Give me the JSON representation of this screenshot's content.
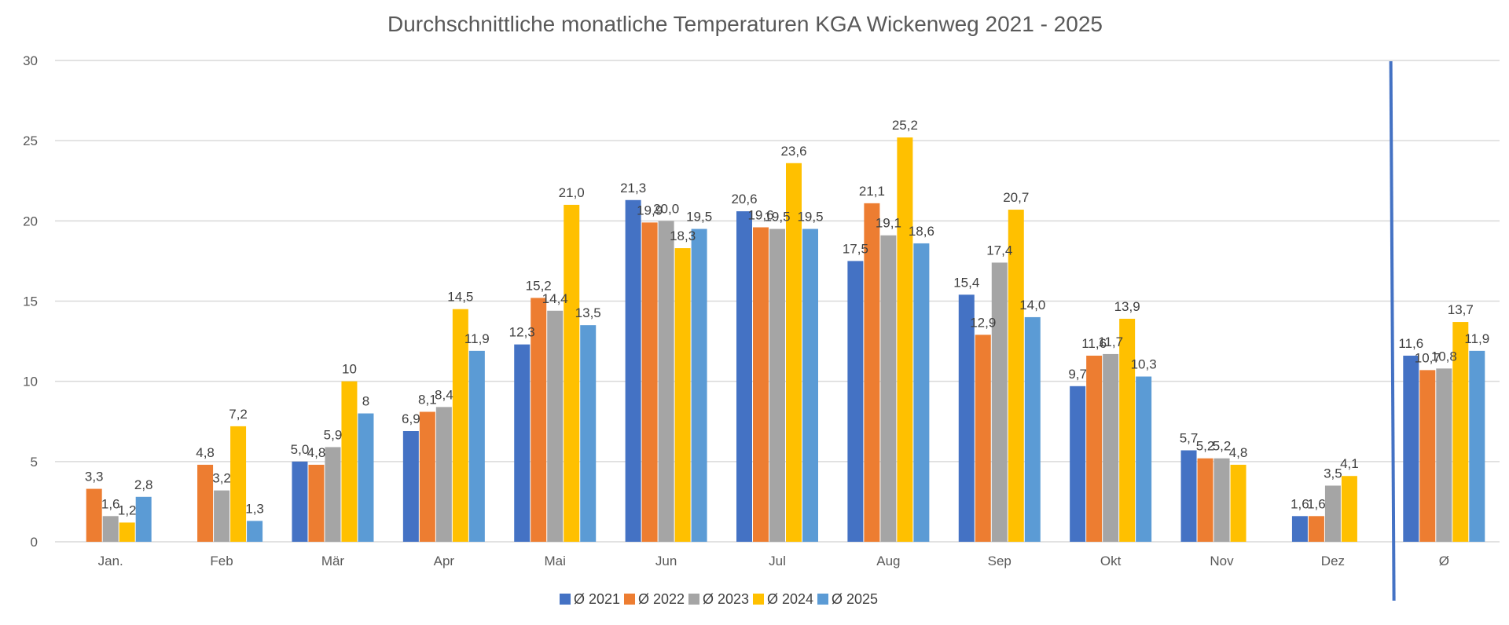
{
  "chart_data": {
    "type": "bar",
    "title": "Durchschnittliche monatliche Temperaturen KGA Wickenweg 2021 - 2025",
    "xlabel": "",
    "ylabel": "",
    "categories": [
      "Jan.",
      "Feb",
      "Mär",
      "Apr",
      "Mai",
      "Jun",
      "Jul",
      "Aug",
      "Sep",
      "Okt",
      "Nov",
      "Dez",
      "Ø"
    ],
    "yticks": [
      "0",
      "5",
      "10",
      "15",
      "20",
      "25",
      "30"
    ],
    "ylim": [
      0,
      30
    ],
    "grid": true,
    "legend_position": "bottom",
    "series": [
      {
        "name": "Ø 2021",
        "color": "#4472C4",
        "values": [
          null,
          null,
          5.0,
          6.9,
          12.3,
          21.3,
          20.6,
          17.5,
          15.4,
          9.7,
          5.7,
          1.6,
          11.6
        ],
        "labels": [
          "",
          "",
          "5,0",
          "6,9",
          "12,3",
          "21,3",
          "20,6",
          "17,5",
          "15,4",
          "9,7",
          "5,7",
          "1,6",
          "11,6"
        ]
      },
      {
        "name": "Ø 2022",
        "color": "#ED7D31",
        "values": [
          3.3,
          4.8,
          4.8,
          8.1,
          15.2,
          19.9,
          19.6,
          21.1,
          12.9,
          11.6,
          5.2,
          1.6,
          10.7
        ],
        "labels": [
          "3,3",
          "4,8",
          "4,8",
          "8,1",
          "15,2",
          "19,9",
          "19,6",
          "21,1",
          "12,9",
          "11,6",
          "5,2",
          "1,6",
          "10,7"
        ]
      },
      {
        "name": "Ø 2023",
        "color": "#A5A5A5",
        "values": [
          1.6,
          3.2,
          5.9,
          8.4,
          14.4,
          20.0,
          19.5,
          19.1,
          17.4,
          11.7,
          5.2,
          3.5,
          10.8
        ],
        "labels": [
          "1,6",
          "3,2",
          "5,9",
          "8,4",
          "14,4",
          "20,0",
          "19,5",
          "19,1",
          "17,4",
          "11,7",
          "5,2",
          "3,5",
          "10,8"
        ]
      },
      {
        "name": "Ø 2024",
        "color": "#FFC000",
        "values": [
          1.2,
          7.2,
          10,
          14.5,
          21.0,
          18.3,
          23.6,
          25.2,
          20.7,
          13.9,
          4.8,
          4.1,
          13.7
        ],
        "labels": [
          "1,2",
          "7,2",
          "10",
          "14,5",
          "21,0",
          "18,3",
          "23,6",
          "25,2",
          "20,7",
          "13,9",
          "4,8",
          "4,1",
          "13,7"
        ]
      },
      {
        "name": "Ø 2025",
        "color": "#5B9BD5",
        "values": [
          2.8,
          1.3,
          8,
          11.9,
          13.5,
          19.5,
          19.5,
          18.6,
          14.0,
          10.3,
          null,
          null,
          11.9
        ],
        "labels": [
          "2,8",
          "1,3",
          "8",
          "11,9",
          "13,5",
          "19,5",
          "19,5",
          "18,6",
          "14,0",
          "10,3",
          "",
          "",
          "11,9"
        ]
      }
    ],
    "separator_color": "#4472C4",
    "gridline_color": "#D9D9D9"
  }
}
